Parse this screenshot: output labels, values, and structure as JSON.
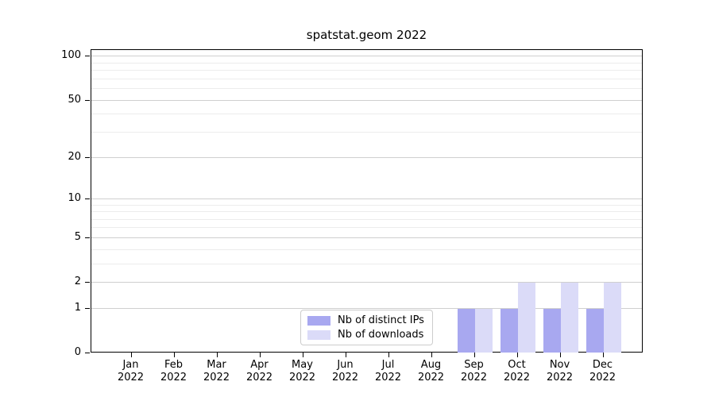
{
  "title": "spatstat.geom 2022",
  "chart_data": {
    "type": "bar",
    "title": "spatstat.geom 2022",
    "categories": [
      "Jan",
      "Feb",
      "Mar",
      "Apr",
      "May",
      "Jun",
      "Jul",
      "Aug",
      "Sep",
      "Oct",
      "Nov",
      "Dec"
    ],
    "year": "2022",
    "series": [
      {
        "name": "Nb of distinct IPs",
        "color": "#a8a8f0",
        "values": [
          0,
          0,
          0,
          0,
          0,
          0,
          0,
          0,
          1,
          1,
          1,
          1
        ]
      },
      {
        "name": "Nb of downloads",
        "color": "#dbdbf8",
        "values": [
          0,
          0,
          0,
          0,
          0,
          0,
          0,
          0,
          1,
          2,
          2,
          2
        ]
      }
    ],
    "xlabel": "",
    "ylabel": "",
    "scale": "log1p",
    "ylim": [
      0,
      111
    ],
    "y_ticks": [
      0,
      1,
      2,
      5,
      10,
      20,
      50,
      100
    ],
    "y_minor_gridlines": [
      3,
      4,
      6,
      7,
      8,
      9,
      30,
      40,
      60,
      70,
      80,
      90
    ],
    "grid": "horizontal",
    "legend_position": "inside-bottom-center-left"
  },
  "colors": {
    "spine": "#000000",
    "major_grid": "#cfcfcf",
    "minor_grid": "#ececec",
    "text": "#000000",
    "background": "#ffffff"
  }
}
